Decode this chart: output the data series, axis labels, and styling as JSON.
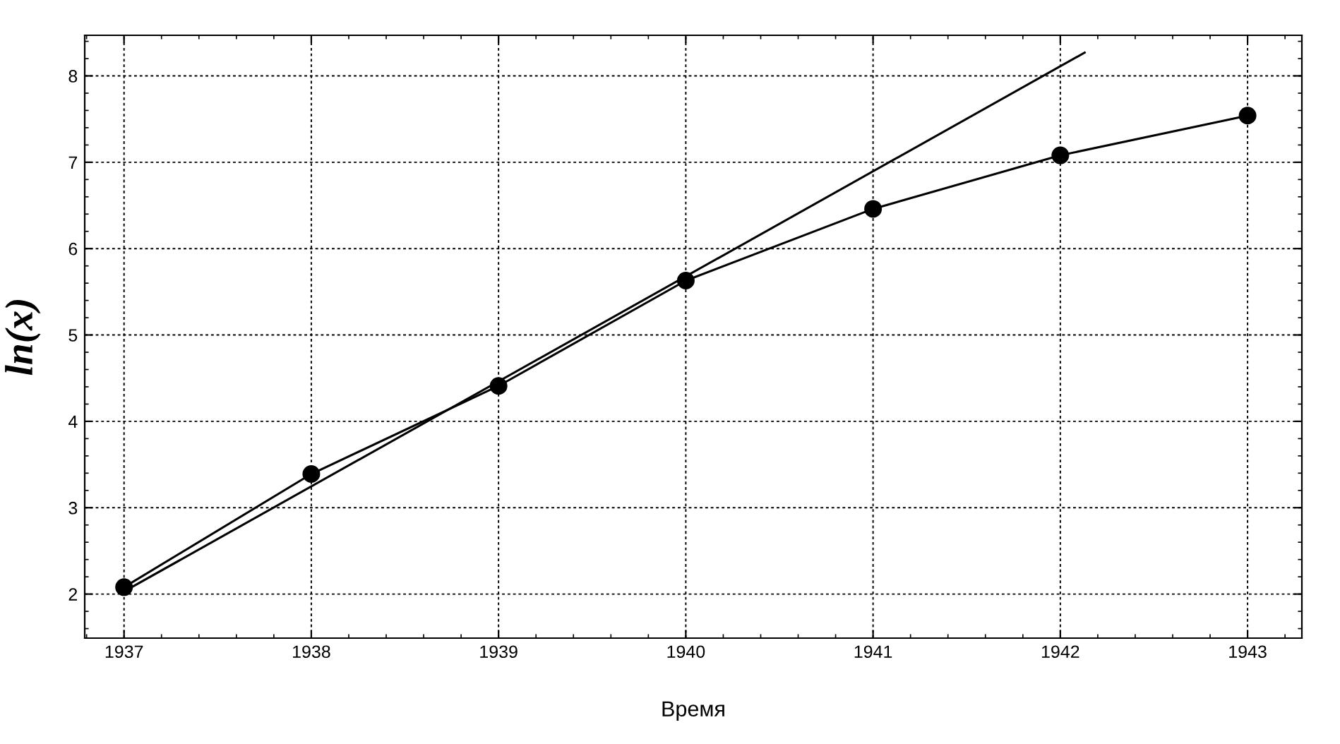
{
  "chart_data": {
    "type": "line",
    "xlabel": "Время",
    "ylabel": "ln(x)",
    "xlim": [
      1936.79,
      1943.29
    ],
    "ylim": [
      1.49,
      8.47
    ],
    "xticks": [
      1937,
      1938,
      1939,
      1940,
      1941,
      1942,
      1943
    ],
    "yticks": [
      2,
      3,
      4,
      5,
      6,
      7,
      8
    ],
    "grid": true,
    "marker": "circle",
    "line_style": "solid",
    "series": [
      {
        "color": "#000000",
        "x": [
          1937,
          1938,
          1939,
          1940,
          1941,
          1942,
          1943
        ],
        "values": [
          2.08,
          3.39,
          4.41,
          5.63,
          6.46,
          7.08,
          7.54
        ]
      },
      {
        "color": "#000000",
        "type": "line",
        "marker": "none",
        "x": [
          1937,
          1942.13
        ],
        "values": [
          2.03,
          8.27
        ]
      }
    ]
  }
}
